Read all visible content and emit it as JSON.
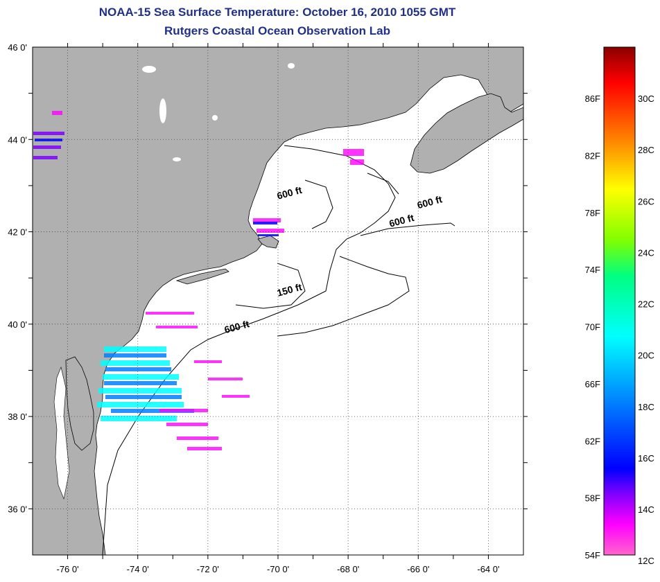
{
  "title": {
    "line1": "NOAA-15 Sea Surface Temperature:  October 16, 2010 1055 GMT",
    "line2": "Rutgers Coastal Ocean Observation Lab"
  },
  "map": {
    "lon_range": [
      -77,
      -63
    ],
    "lat_range": [
      35,
      46
    ],
    "x_tick_labels": [
      "-76 0'",
      "-74 0'",
      "-72 0'",
      "-70 0'",
      "-68 0'",
      "-66 0'",
      "-64 0'"
    ],
    "y_tick_labels": [
      "46 0'",
      "44 0'",
      "42 0'",
      "40 0'",
      "38 0'",
      "36 0'"
    ],
    "land_color": "#b0b0b0",
    "water_color": "#ffffff",
    "grid": "dotted"
  },
  "contour_labels": [
    {
      "text": "600 ft",
      "lon": -70.0,
      "lat": 42.7
    },
    {
      "text": "600 ft",
      "lon": -66.0,
      "lat": 42.5
    },
    {
      "text": "600 ft",
      "lon": -66.8,
      "lat": 42.1
    },
    {
      "text": "150 ft",
      "lon": -70.0,
      "lat": 40.6
    },
    {
      "text": "600 ft",
      "lon": -71.5,
      "lat": 39.8
    }
  ],
  "colorbar": {
    "fahrenheit_labels": [
      "86F",
      "82F",
      "78F",
      "74F",
      "70F",
      "66F",
      "62F",
      "58F",
      "54F"
    ],
    "celsius_labels": [
      "30C",
      "28C",
      "26C",
      "24C",
      "22C",
      "20C",
      "18C",
      "16C",
      "14C",
      "12C"
    ],
    "colors": [
      "#8b0000",
      "#ff0000",
      "#ff8000",
      "#ffff00",
      "#80ff00",
      "#00ff80",
      "#00ffff",
      "#0080ff",
      "#0000ff",
      "#8000ff",
      "#ff00ff",
      "#ff66cc"
    ]
  }
}
